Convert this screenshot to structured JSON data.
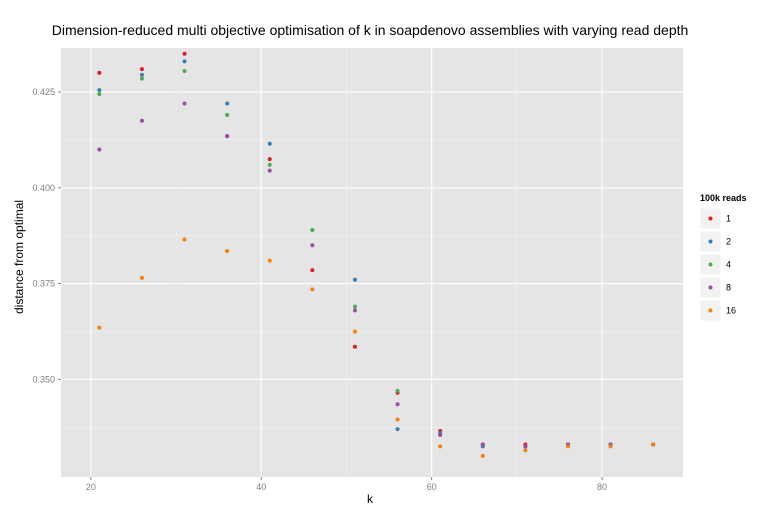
{
  "chart_data": {
    "type": "scatter",
    "title": "Dimension-reduced multi objective optimisation of k in soapdenovo assemblies with varying read depth",
    "xlabel": "k",
    "ylabel": "distance from optimal",
    "xlim": [
      16.5,
      89.5
    ],
    "ylim": [
      0.3245,
      0.4365
    ],
    "x_ticks": [
      20,
      40,
      60,
      80
    ],
    "y_ticks": [
      0.35,
      0.375,
      0.4,
      0.425
    ],
    "x_tick_labels": [
      "20",
      "40",
      "60",
      "80"
    ],
    "y_tick_labels": [
      "0.350",
      "0.375",
      "0.400",
      "0.425"
    ],
    "grid": true,
    "legend": {
      "title": "100k reads",
      "position": "right",
      "entries": [
        "1",
        "2",
        "4",
        "8",
        "16"
      ]
    },
    "colors": {
      "1": "#E41A1C",
      "2": "#377EB8",
      "4": "#4DAF4A",
      "8": "#984EA3",
      "16": "#FF7F00",
      "panel_bg": "#E5E5E5",
      "grid_major": "#FFFFFF",
      "grid_minor": "#F2F2F2"
    },
    "series": [
      {
        "name": "1",
        "x": [
          21,
          26,
          31,
          36,
          41,
          46,
          51,
          56,
          61,
          66,
          71,
          76,
          81,
          86
        ],
        "y": [
          0.43,
          0.431,
          0.435,
          0.4135,
          0.4075,
          0.3785,
          0.3585,
          0.3465,
          0.3365,
          0.333,
          0.333,
          0.333,
          0.333,
          0.333
        ]
      },
      {
        "name": "2",
        "x": [
          21,
          26,
          31,
          36,
          41,
          46,
          51,
          56,
          61,
          66,
          71,
          76,
          81,
          86
        ],
        "y": [
          0.4255,
          0.4295,
          0.433,
          0.422,
          0.4115,
          0.389,
          0.376,
          0.337,
          0.336,
          0.3325,
          0.3325,
          0.333,
          0.333,
          0.333
        ]
      },
      {
        "name": "4",
        "x": [
          21,
          26,
          31,
          36,
          41,
          46,
          51,
          56,
          61,
          66,
          71,
          76,
          81,
          86
        ],
        "y": [
          0.4245,
          0.4285,
          0.4305,
          0.419,
          0.406,
          0.389,
          0.369,
          0.347,
          0.3355,
          0.333,
          0.3325,
          0.333,
          0.333,
          0.333
        ]
      },
      {
        "name": "8",
        "x": [
          21,
          26,
          31,
          36,
          41,
          46,
          51,
          56,
          61,
          66,
          71,
          76,
          81,
          86
        ],
        "y": [
          0.41,
          0.4175,
          0.422,
          0.4135,
          0.4045,
          0.385,
          0.368,
          0.3435,
          0.3355,
          0.333,
          0.3325,
          0.333,
          0.333,
          0.333
        ]
      },
      {
        "name": "16",
        "x": [
          21,
          26,
          31,
          36,
          41,
          46,
          51,
          56,
          61,
          66,
          71,
          76,
          81,
          86
        ],
        "y": [
          0.3635,
          0.3765,
          0.3865,
          0.3835,
          0.381,
          0.3735,
          0.3625,
          0.3395,
          0.3325,
          0.33,
          0.3315,
          0.3325,
          0.3325,
          0.333
        ]
      }
    ]
  }
}
